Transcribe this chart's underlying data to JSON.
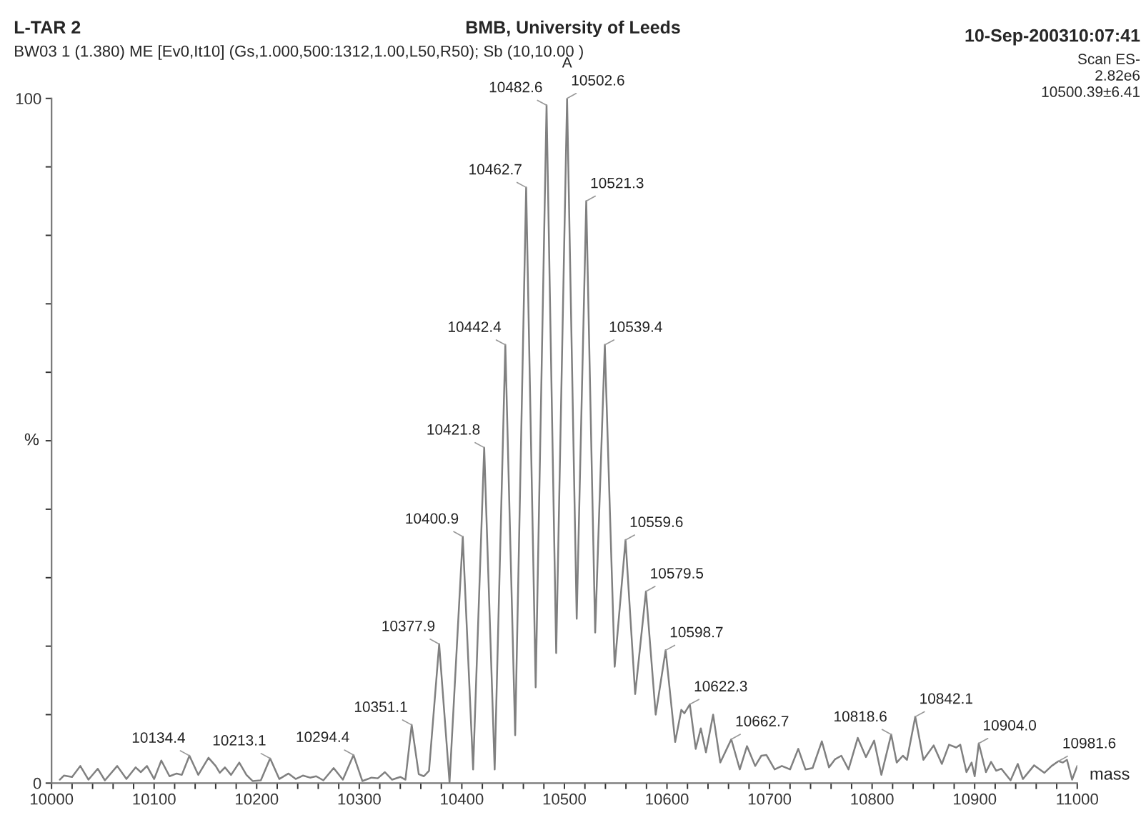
{
  "chart_data": {
    "type": "line",
    "title": "L-TAR 2",
    "subtitle": "BW03 1 (1.380) ME [Ev0,It10] (Gs,1.000,500:1312,1.00,L50,R50); Sb (10,10.00 )",
    "xlabel": "mass",
    "ylabel": "%",
    "xlim": [
      10000,
      11000
    ],
    "ylim": [
      0,
      100
    ],
    "xticks": [
      10000,
      {
        "value": 10020,
        "label": null
      },
      {
        "value": 10040,
        "label": null
      },
      {
        "value": 10060,
        "label": null
      },
      {
        "value": 10080,
        "label": null
      },
      10100,
      {
        "value": 10120,
        "label": null
      },
      {
        "value": 10140,
        "label": null
      },
      {
        "value": 10160,
        "label": null
      },
      {
        "value": 10180,
        "label": null
      },
      10200,
      {
        "value": 10220,
        "label": null
      },
      {
        "value": 10240,
        "label": null
      },
      {
        "value": 10260,
        "label": null
      },
      {
        "value": 10280,
        "label": null
      },
      10300,
      {
        "value": 10320,
        "label": null
      },
      {
        "value": 10340,
        "label": null
      },
      {
        "value": 10360,
        "label": null
      },
      {
        "value": 10380,
        "label": null
      },
      10400,
      {
        "value": 10420,
        "label": null
      },
      {
        "value": 10440,
        "label": null
      },
      {
        "value": 10460,
        "label": null
      },
      {
        "value": 10480,
        "label": null
      },
      10500,
      {
        "value": 10520,
        "label": null
      },
      {
        "value": 10540,
        "label": null
      },
      {
        "value": 10560,
        "label": null
      },
      {
        "value": 10580,
        "label": null
      },
      10600,
      {
        "value": 10620,
        "label": null
      },
      {
        "value": 10640,
        "label": null
      },
      {
        "value": 10660,
        "label": null
      },
      {
        "value": 10680,
        "label": null
      },
      10700,
      {
        "value": 10720,
        "label": null
      },
      {
        "value": 10740,
        "label": null
      },
      {
        "value": 10760,
        "label": null
      },
      {
        "value": 10780,
        "label": null
      },
      10800,
      {
        "value": 10820,
        "label": null
      },
      {
        "value": 10840,
        "label": null
      },
      {
        "value": 10860,
        "label": null
      },
      {
        "value": 10880,
        "label": null
      },
      10900,
      {
        "value": 10920,
        "label": null
      },
      {
        "value": 10940,
        "label": null
      },
      {
        "value": 10960,
        "label": null
      },
      {
        "value": 10980,
        "label": null
      },
      11000
    ],
    "yticks": [
      0,
      {
        "value": 10,
        "label": null
      },
      {
        "value": 20,
        "label": null
      },
      {
        "value": 30,
        "label": null
      },
      {
        "value": 40,
        "label": null
      },
      {
        "value": 50,
        "label": null
      },
      {
        "value": 60,
        "label": null
      },
      {
        "value": 70,
        "label": null
      },
      {
        "value": 80,
        "label": null
      },
      {
        "value": 90,
        "label": null
      },
      100
    ],
    "grid": false,
    "marker": "none",
    "line_style": "solid",
    "series": [
      {
        "color": "#808080",
        "x": [
          10008,
          10012,
          10020,
          10028,
          10036,
          10045,
          10052,
          10064,
          10073,
          10082,
          10087,
          10093,
          10100,
          10107,
          10115,
          10122,
          10127,
          10134.4,
          10143,
          10153,
          10160,
          10164,
          10169,
          10175,
          10183,
          10190,
          10196,
          10204,
          10213.1,
          10222,
          10231,
          10238,
          10245,
          10252,
          10258,
          10265,
          10275,
          10284,
          10294.4,
          10303,
          10312,
          10318,
          10325,
          10332,
          10340,
          10345,
          10351.1,
          10358,
          10363,
          10368,
          10377.9,
          10388,
          10400.9,
          10411,
          10421.8,
          10432,
          10442.4,
          10452,
          10462.7,
          10472,
          10482.6,
          10492,
          10502.6,
          10512,
          10521.3,
          10530,
          10539.4,
          10549,
          10559.6,
          10569,
          10579.5,
          10589,
          10598.7,
          10608,
          10614,
          10617,
          10622.3,
          10628,
          10633,
          10638,
          10645,
          10652,
          10662.7,
          10671,
          10678,
          10686,
          10692,
          10697,
          10705,
          10712,
          10720,
          10728,
          10735,
          10742,
          10751,
          10758,
          10764,
          10770,
          10777,
          10786,
          10794,
          10802,
          10809,
          10818.6,
          10824,
          10830,
          10834,
          10842.1,
          10850,
          10860,
          10868,
          10875,
          10882,
          10886,
          10892,
          10897,
          10900,
          10904.0,
          10911,
          10916,
          10921,
          10926,
          10935,
          10942,
          10947,
          10958,
          10968,
          10975,
          10981.6,
          10986,
          10990,
          10995,
          11000
        ],
        "values": [
          0.5,
          1.1,
          0.9,
          2.5,
          0.5,
          2.1,
          0.4,
          2.5,
          0.6,
          2.3,
          1.6,
          2.5,
          0.6,
          3.3,
          1.0,
          1.4,
          1.2,
          4.0,
          1.2,
          3.7,
          2.5,
          1.5,
          2.3,
          1.2,
          3.0,
          1.2,
          0.3,
          0.4,
          3.6,
          0.6,
          1.4,
          0.6,
          1.1,
          0.8,
          1.0,
          0.4,
          2.2,
          0.5,
          4.1,
          0.3,
          0.8,
          0.7,
          1.6,
          0.5,
          0.9,
          0.5,
          8.5,
          1.3,
          1.0,
          1.8,
          20.3,
          0.1,
          36,
          2,
          49,
          2,
          64,
          7,
          87,
          14,
          99,
          19,
          100,
          24,
          85,
          22,
          64,
          17,
          35.5,
          13,
          28,
          10,
          19.4,
          6,
          10.7,
          10.2,
          11.5,
          5,
          8,
          4.5,
          10,
          3,
          6.4,
          2,
          5.4,
          2.5,
          4,
          4.1,
          2,
          2.5,
          2,
          5,
          2,
          2.2,
          6.1,
          2.3,
          3.5,
          4,
          2,
          6.6,
          3.8,
          6.2,
          1.2,
          7.1,
          3,
          4,
          3.4,
          9.7,
          3.4,
          5.5,
          2.8,
          5.6,
          5.2,
          5.6,
          1.6,
          3,
          1,
          5.8,
          1.6,
          3.1,
          1.8,
          2.1,
          0.4,
          2.8,
          0.6,
          2.6,
          1.5,
          2.5,
          3.2,
          3,
          3.4,
          0.5,
          2.5
        ]
      }
    ],
    "annotations": [
      "BMB, University of Leeds",
      "10-Sep-200310:07:41",
      "Scan ES-",
      "2.82e6",
      "10500.39±6.41",
      {
        "text": "10134.4",
        "x": 10134.4,
        "y": 4.0
      },
      {
        "text": "10213.1",
        "x": 10213.1,
        "y": 3.6
      },
      {
        "text": "10294.4",
        "x": 10294.4,
        "y": 4.1
      },
      {
        "text": "10351.1",
        "x": 10351.1,
        "y": 8.5
      },
      {
        "text": "10377.9",
        "x": 10377.9,
        "y": 20.3
      },
      {
        "text": "10400.9",
        "x": 10400.9,
        "y": 36
      },
      {
        "text": "10421.8",
        "x": 10421.8,
        "y": 49
      },
      {
        "text": "10442.4",
        "x": 10442.4,
        "y": 64
      },
      {
        "text": "10462.7",
        "x": 10462.7,
        "y": 87
      },
      {
        "text": "10482.6",
        "x": 10482.6,
        "y": 99
      },
      {
        "text": "10502.6",
        "x": 10502.6,
        "y": 100
      },
      {
        "text": "A",
        "x": 10502.6,
        "y": 100
      },
      {
        "text": "10521.3",
        "x": 10521.3,
        "y": 85
      },
      {
        "text": "10539.4",
        "x": 10539.4,
        "y": 64
      },
      {
        "text": "10559.6",
        "x": 10559.6,
        "y": 35.5
      },
      {
        "text": "10579.5",
        "x": 10579.5,
        "y": 28
      },
      {
        "text": "10598.7",
        "x": 10598.7,
        "y": 19.4
      },
      {
        "text": "10622.3",
        "x": 10622.3,
        "y": 11.5
      },
      {
        "text": "10662.7",
        "x": 10662.7,
        "y": 6.4
      },
      {
        "text": "10818.6",
        "x": 10818.6,
        "y": 7.1
      },
      {
        "text": "10842.1",
        "x": 10842.1,
        "y": 9.7
      },
      {
        "text": "10904.0",
        "x": 10904.0,
        "y": 5.8
      },
      {
        "text": "10981.6",
        "x": 10981.6,
        "y": 3.2
      }
    ]
  }
}
